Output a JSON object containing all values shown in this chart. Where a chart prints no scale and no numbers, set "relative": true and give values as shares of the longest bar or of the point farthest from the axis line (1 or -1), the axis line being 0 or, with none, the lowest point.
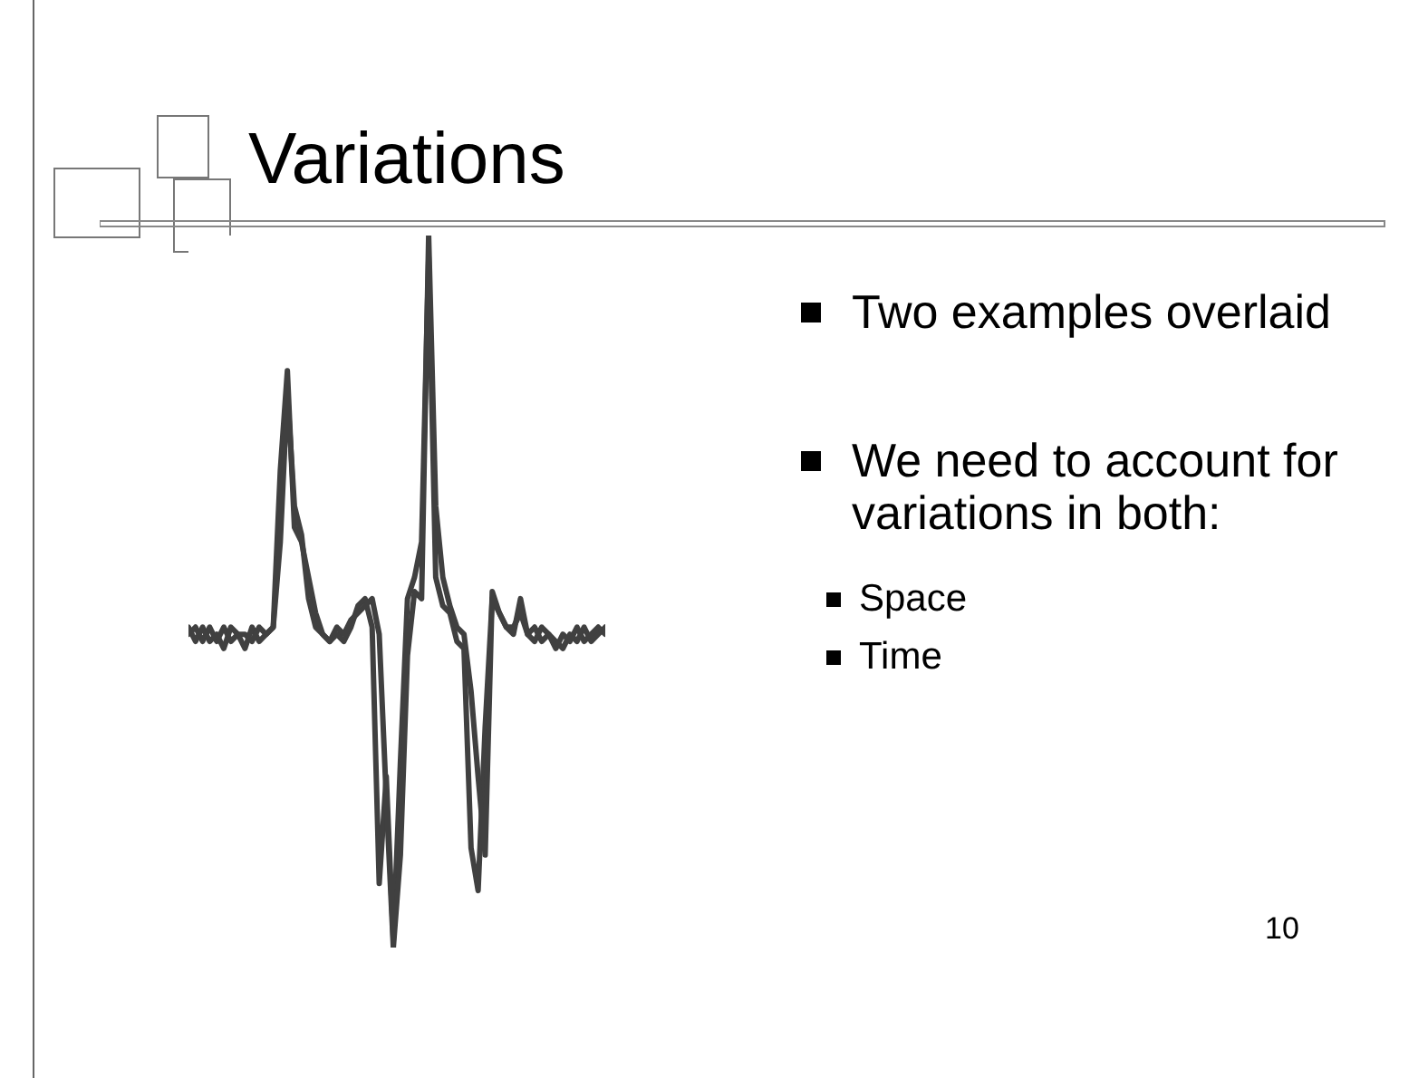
{
  "chart_data": {
    "type": "line",
    "title": "Variations",
    "relative": true,
    "categories": [
      null,
      null,
      null,
      null,
      null,
      null,
      null,
      null,
      null,
      null,
      null,
      null,
      null,
      null,
      null,
      null,
      null,
      null,
      null,
      null,
      null,
      null,
      null,
      null,
      null,
      null,
      null,
      null,
      null,
      null,
      null,
      null,
      null,
      null,
      null,
      null,
      null,
      null,
      null,
      null,
      null,
      null,
      null,
      null,
      null,
      null,
      null,
      null,
      null,
      null,
      null,
      null,
      null,
      null,
      null,
      null,
      null,
      null,
      null,
      null
    ],
    "series": [
      {
        "color": "#404040",
        "values": [
          0.44,
          0.45,
          0.43,
          0.45,
          0.43,
          0.45,
          0.43,
          0.44,
          0.42,
          0.45,
          0.43,
          0.44,
          0.45,
          0.67,
          0.81,
          0.59,
          0.57,
          0.52,
          0.47,
          0.44,
          0.43,
          0.44,
          0.43,
          0.45,
          0.48,
          0.49,
          0.45,
          0.09,
          0.24,
          0.01,
          0.26,
          0.49,
          0.52,
          0.57,
          0.97,
          0.52,
          0.48,
          0.47,
          0.43,
          0.42,
          0.14,
          0.08,
          0.31,
          0.49,
          0.47,
          0.45,
          0.44,
          0.49,
          0.44,
          0.45,
          0.43,
          0.44,
          0.43,
          0.42,
          0.44,
          0.43,
          0.45,
          0.43,
          0.44,
          0.45
        ]
      },
      {
        "color": "#404040",
        "values": [
          0.45,
          0.43,
          0.45,
          0.43,
          0.44,
          0.42,
          0.45,
          0.44,
          0.44,
          0.43,
          0.45,
          0.44,
          0.45,
          0.57,
          0.78,
          0.62,
          0.58,
          0.49,
          0.45,
          0.44,
          0.43,
          0.45,
          0.44,
          0.46,
          0.47,
          0.48,
          0.49,
          0.44,
          0.21,
          0.0,
          0.13,
          0.41,
          0.5,
          0.49,
          1.0,
          0.62,
          0.52,
          0.48,
          0.45,
          0.44,
          0.36,
          0.24,
          0.13,
          0.5,
          0.47,
          0.45,
          0.45,
          0.47,
          0.44,
          0.43,
          0.45,
          0.44,
          0.42,
          0.44,
          0.43,
          0.45,
          0.43,
          0.44,
          0.45,
          0.44
        ]
      }
    ],
    "annotations": [
      "Two examples overlaid",
      "We need to account for variations in both:",
      "Space",
      "Time",
      "10"
    ]
  }
}
